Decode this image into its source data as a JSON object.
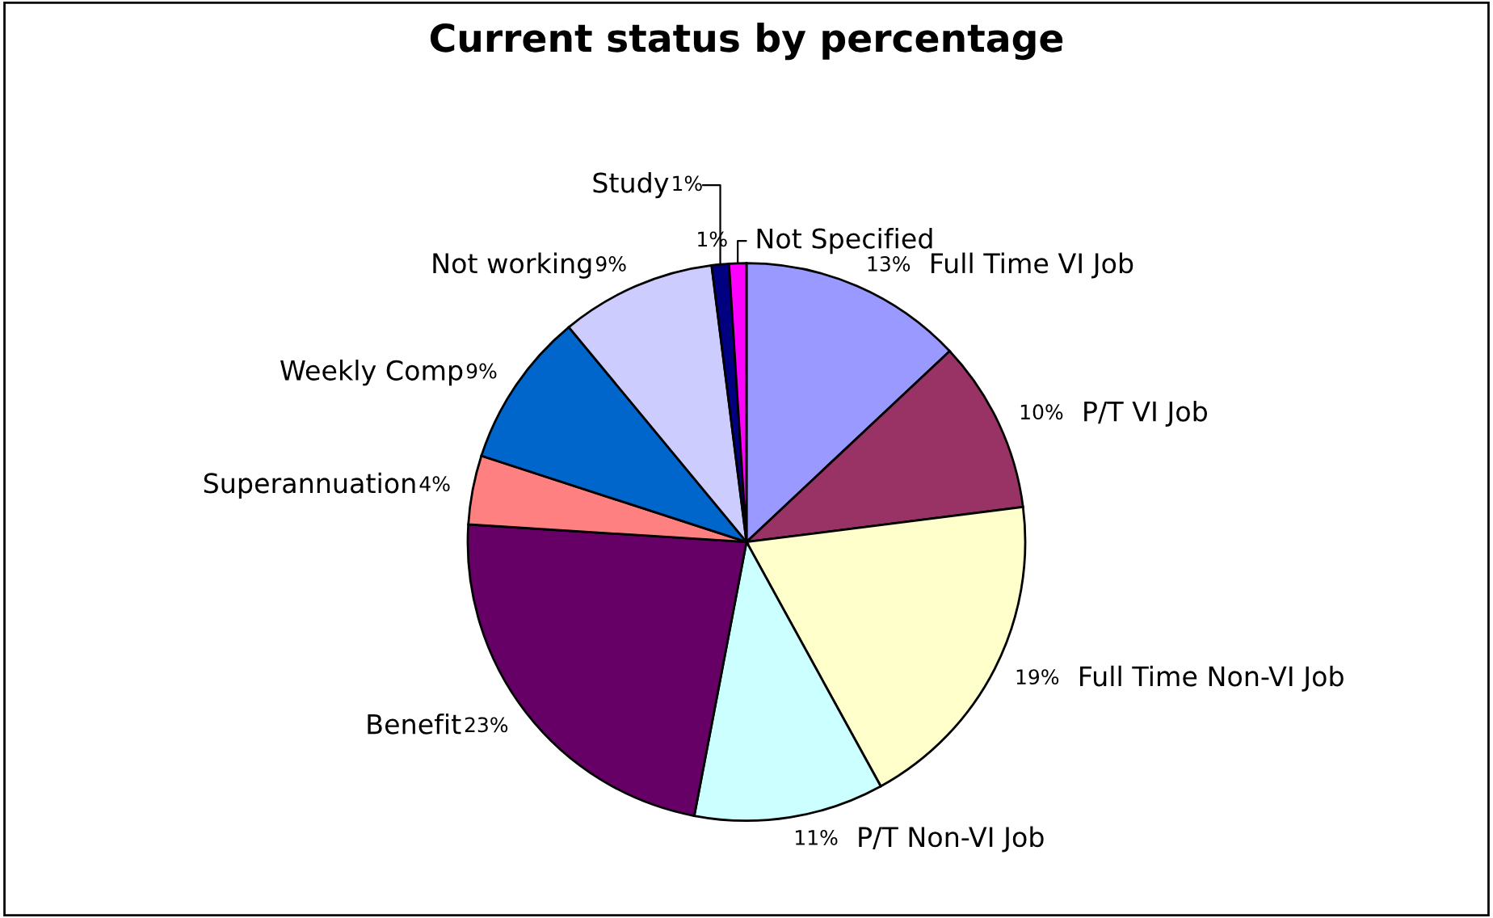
{
  "chart_data": {
    "type": "pie",
    "title": "Current status by percentage",
    "categories": [
      "Full Time VI Job",
      "P/T VI Job",
      "Full Time Non-VI Job",
      "P/T Non-VI Job",
      "Benefit",
      "Superannuation",
      "Weekly Comp",
      "Not working",
      "Study",
      "Not Specified"
    ],
    "values": [
      13,
      10,
      19,
      11,
      23,
      4,
      9,
      9,
      1,
      1
    ],
    "value_labels": [
      "13%",
      "10%",
      "19%",
      "11%",
      "23%",
      "4%",
      "9%",
      "9%",
      "1%",
      "1%"
    ],
    "colors": [
      "#9999ff",
      "#993366",
      "#ffffcc",
      "#ccffff",
      "#660066",
      "#ff8080",
      "#0066cc",
      "#ccccff",
      "#000080",
      "#ff00ff"
    ],
    "legend": false
  }
}
